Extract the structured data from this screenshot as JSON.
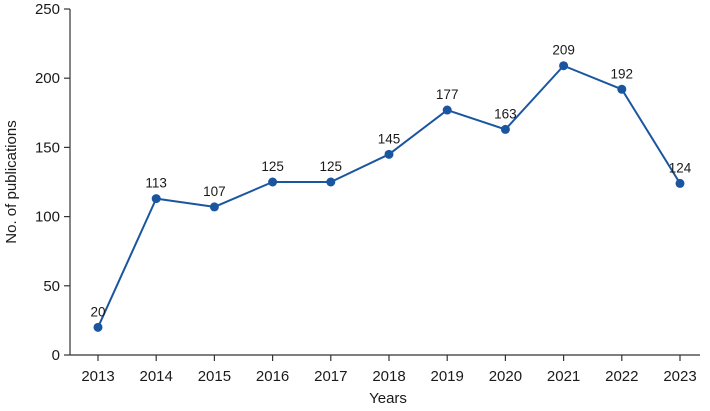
{
  "chart_data": {
    "type": "line",
    "title": "",
    "xlabel": "Years",
    "ylabel": "No. of publications",
    "categories": [
      "2013",
      "2014",
      "2015",
      "2016",
      "2017",
      "2018",
      "2019",
      "2020",
      "2021",
      "2022",
      "2023"
    ],
    "series": [
      {
        "values": [
          20,
          113,
          107,
          125,
          125,
          145,
          177,
          163,
          209,
          192,
          124
        ]
      }
    ],
    "data_labels": [
      "20",
      "113",
      "107",
      "125",
      "125",
      "145",
      "177",
      "163",
      "209",
      "192",
      "124"
    ],
    "ylim": [
      0,
      250
    ],
    "yticks": [
      0,
      50,
      100,
      150,
      200,
      250
    ],
    "grid": false,
    "legend": "none",
    "colors": {
      "series": "#1a56a0",
      "axis": "#333333"
    }
  }
}
